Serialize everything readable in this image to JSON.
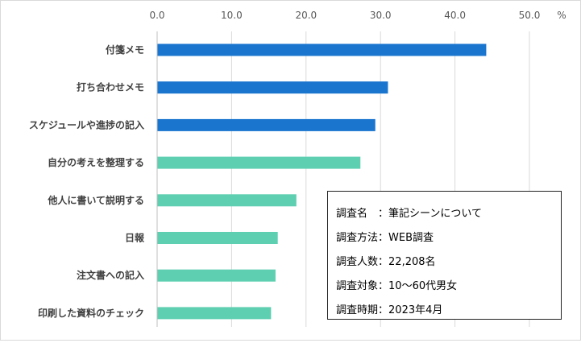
{
  "chart_data": {
    "type": "bar",
    "orientation": "horizontal",
    "categories": [
      "付箋メモ",
      "打ち合わせメモ",
      "スケジュールや進捗の記入",
      "自分の考えを整理する",
      "他人に書いて説明する",
      "日報",
      "注文書への記入",
      "印刷した資料のチェック"
    ],
    "values": [
      44.2,
      31.0,
      29.3,
      27.3,
      18.7,
      16.2,
      15.9,
      15.3
    ],
    "bar_colors": [
      "#1a75cf",
      "#1a75cf",
      "#1a75cf",
      "#5ecfb1",
      "#5ecfb1",
      "#5ecfb1",
      "#5ecfb1",
      "#5ecfb1"
    ],
    "x_ticks": [
      "0.0",
      "10.0",
      "20.0",
      "30.0",
      "40.0",
      "50.0"
    ],
    "xlim": [
      0,
      55
    ],
    "unit_label": "%",
    "grid": true
  },
  "info_box": {
    "lines": [
      {
        "key": "調査名",
        "sep": "　：",
        "value": "筆記シーンについて"
      },
      {
        "key": "調査方法",
        "sep": "：",
        "value": "WEB調査"
      },
      {
        "key": "調査人数",
        "sep": "：",
        "value": "22,208名"
      },
      {
        "key": "調査対象",
        "sep": "：",
        "value": "10～60代男女"
      },
      {
        "key": "調査時期",
        "sep": "：",
        "value": "2023年4月"
      }
    ]
  }
}
